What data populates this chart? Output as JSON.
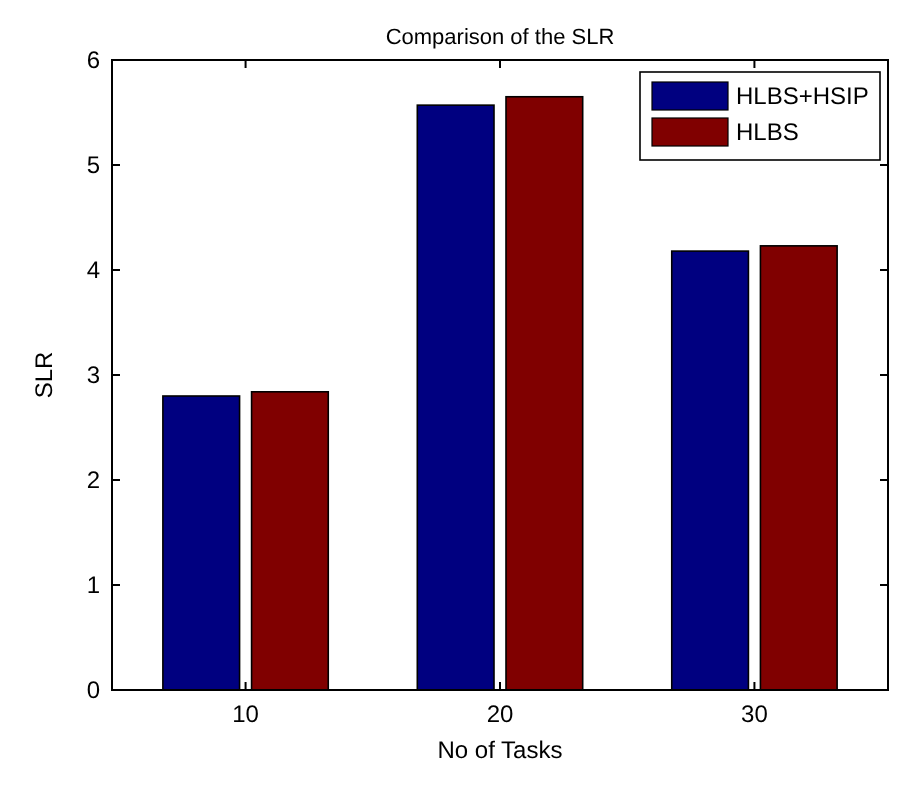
{
  "chart_data": {
    "type": "bar",
    "title": "Comparison of the SLR",
    "xlabel": "No of Tasks",
    "ylabel": "SLR",
    "categories": [
      "10",
      "20",
      "30"
    ],
    "series": [
      {
        "name": "HLBS+HSIP",
        "color": "#000080",
        "values": [
          2.8,
          5.57,
          4.18
        ]
      },
      {
        "name": "HLBS",
        "color": "#800000",
        "values": [
          2.84,
          5.65,
          4.23
        ]
      }
    ],
    "ylim": [
      0,
      6
    ],
    "yticks": [
      0,
      1,
      2,
      3,
      4,
      5,
      6
    ],
    "legend": "top right"
  }
}
